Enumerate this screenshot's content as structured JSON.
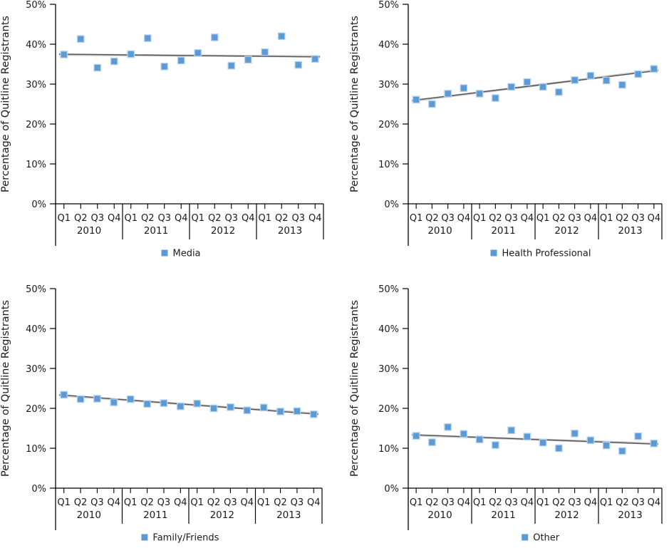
{
  "figure": {
    "background": "#ffffff"
  },
  "colors": {
    "marker": "#5b9bd5",
    "marker_border": "#b8d2ec",
    "trend": "#545454",
    "trend_light": "#c9c9c9",
    "axis": "#000000",
    "text": "#1a1a1a"
  },
  "axes": {
    "y_title": "Percentage of Quitline Registrants",
    "y_ticks": [
      "0%",
      "10%",
      "20%",
      "30%",
      "40%",
      "50%"
    ],
    "ylim": [
      0,
      50
    ],
    "quarters": [
      "Q1",
      "Q2",
      "Q3",
      "Q4"
    ],
    "years": [
      "2010",
      "2011",
      "2012",
      "2013"
    ]
  },
  "chart_data": [
    {
      "type": "scatter",
      "legend": "Media",
      "categories": [
        "2010 Q1",
        "2010 Q2",
        "2010 Q3",
        "2010 Q4",
        "2011 Q1",
        "2011 Q2",
        "2011 Q3",
        "2011 Q4",
        "2012 Q1",
        "2012 Q2",
        "2012 Q3",
        "2012 Q4",
        "2013 Q1",
        "2013 Q2",
        "2013 Q3",
        "2013 Q4"
      ],
      "values": [
        37.4,
        41.3,
        34.1,
        35.7,
        37.5,
        41.5,
        34.4,
        35.9,
        37.8,
        41.7,
        34.6,
        36.1,
        38.0,
        42.0,
        34.8,
        36.3
      ],
      "ylabel": "Percentage of Quitline Registrants",
      "ylim": [
        0,
        50
      ],
      "trendline": {
        "start": 37.5,
        "end": 36.8
      }
    },
    {
      "type": "scatter",
      "legend": "Health Professional",
      "categories": [
        "2010 Q1",
        "2010 Q2",
        "2010 Q3",
        "2010 Q4",
        "2011 Q1",
        "2011 Q2",
        "2011 Q3",
        "2011 Q4",
        "2012 Q1",
        "2012 Q2",
        "2012 Q3",
        "2012 Q4",
        "2013 Q1",
        "2013 Q2",
        "2013 Q3",
        "2013 Q4"
      ],
      "values": [
        26.1,
        25.0,
        27.6,
        29.0,
        27.6,
        26.5,
        29.3,
        30.5,
        29.3,
        28.0,
        31.0,
        32.1,
        30.9,
        29.8,
        32.5,
        33.8
      ],
      "ylabel": "Percentage of Quitline Registrants",
      "ylim": [
        0,
        50
      ],
      "trendline": {
        "start": 25.9,
        "end": 33.4
      }
    },
    {
      "type": "scatter",
      "legend": "Family/Friends",
      "categories": [
        "2010 Q1",
        "2010 Q2",
        "2010 Q3",
        "2010 Q4",
        "2011 Q1",
        "2011 Q2",
        "2011 Q3",
        "2011 Q4",
        "2012 Q1",
        "2012 Q2",
        "2012 Q3",
        "2012 Q4",
        "2013 Q1",
        "2013 Q2",
        "2013 Q3",
        "2013 Q4"
      ],
      "values": [
        23.4,
        22.3,
        22.4,
        21.5,
        22.3,
        21.1,
        21.3,
        20.5,
        21.2,
        20.0,
        20.3,
        19.5,
        20.2,
        19.2,
        19.3,
        18.5
      ],
      "ylabel": "Percentage of Quitline Registrants",
      "ylim": [
        0,
        50
      ],
      "trendline": {
        "start": 23.4,
        "end": 18.5
      }
    },
    {
      "type": "scatter",
      "legend": "Other",
      "categories": [
        "2010 Q1",
        "2010 Q2",
        "2010 Q3",
        "2010 Q4",
        "2011 Q1",
        "2011 Q2",
        "2011 Q3",
        "2011 Q4",
        "2012 Q1",
        "2012 Q2",
        "2012 Q3",
        "2012 Q4",
        "2013 Q1",
        "2013 Q2",
        "2013 Q3",
        "2013 Q4"
      ],
      "values": [
        13.1,
        11.5,
        15.3,
        13.6,
        12.2,
        10.8,
        14.5,
        12.9,
        11.4,
        10.0,
        13.7,
        12.0,
        10.7,
        9.3,
        13.0,
        11.2
      ],
      "ylabel": "Percentage of Quitline Registrants",
      "ylim": [
        0,
        50
      ],
      "trendline": {
        "start": 13.4,
        "end": 11.0
      }
    }
  ]
}
